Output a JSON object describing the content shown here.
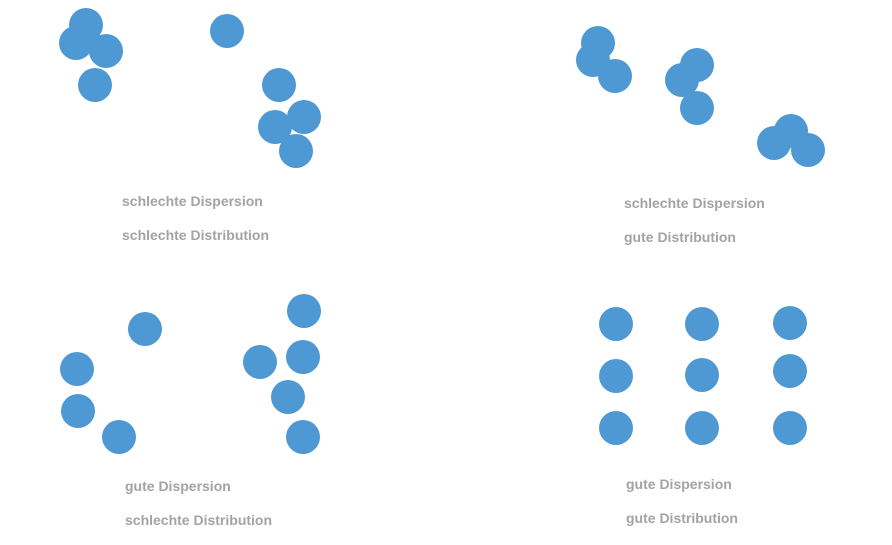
{
  "colors": {
    "particle": "#4e98d4",
    "label": "#a3a3a3",
    "background": "#ffffff"
  },
  "panels": [
    {
      "dispersion_label": "schlechte Dispersion",
      "distribution_label": "schlechte Distribution"
    },
    {
      "dispersion_label": "schlechte Dispersion",
      "distribution_label": "gute Distribution"
    },
    {
      "dispersion_label": "gute Dispersion",
      "distribution_label": "schlechte Distribution"
    },
    {
      "dispersion_label": "gute Dispersion",
      "distribution_label": "gute Distribution"
    }
  ]
}
